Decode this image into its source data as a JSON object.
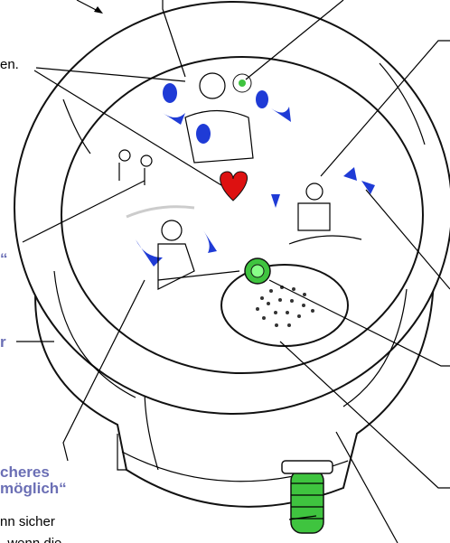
{
  "callouts": [
    "en.",
    "“",
    "r",
    "cheres",
    "möglich“",
    "nn sicher",
    ", wenn die"
  ]
}
